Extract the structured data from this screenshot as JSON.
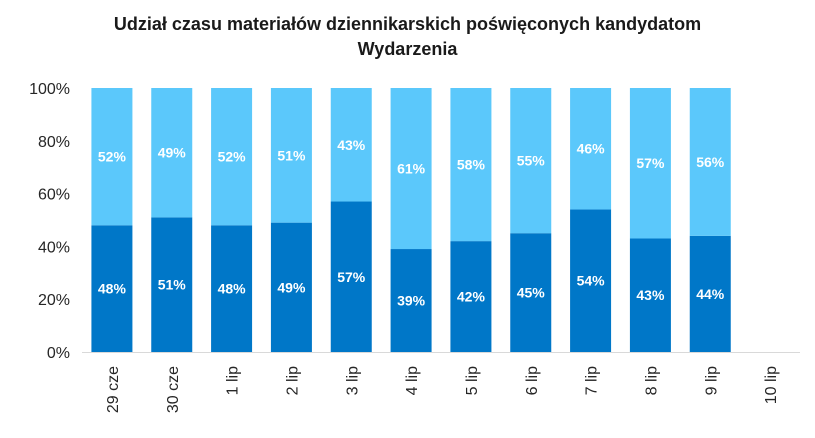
{
  "chart_data": {
    "type": "bar",
    "stacked": true,
    "percent_stacked": true,
    "title": "Udział czasu materiałów dziennikarskich poświęconych kandydatom",
    "subtitle": "Wydarzenia",
    "xlabel": "",
    "ylabel": "",
    "ylim": [
      0,
      100
    ],
    "yticks": [
      "0%",
      "20%",
      "40%",
      "60%",
      "80%",
      "100%"
    ],
    "grid": false,
    "legend": "none",
    "categories": [
      "29 cze",
      "30 cze",
      "1 lip",
      "2 lip",
      "3 lip",
      "4 lip",
      "5 lip",
      "6 lip",
      "7 lip",
      "8 lip",
      "9 lip",
      "10 lip"
    ],
    "series": [
      {
        "name": "series-1",
        "color": "#0077c8",
        "values": [
          48,
          51,
          48,
          49,
          57,
          39,
          42,
          45,
          54,
          43,
          44,
          null
        ],
        "labels": [
          "48%",
          "51%",
          "48%",
          "49%",
          "57%",
          "39%",
          "42%",
          "45%",
          "54%",
          "43%",
          "44%",
          ""
        ]
      },
      {
        "name": "series-2",
        "color": "#5bc8fb",
        "values": [
          52,
          49,
          52,
          51,
          43,
          61,
          58,
          55,
          46,
          57,
          56,
          null
        ],
        "labels": [
          "52%",
          "49%",
          "52%",
          "51%",
          "43%",
          "61%",
          "58%",
          "55%",
          "46%",
          "57%",
          "56%",
          ""
        ]
      }
    ]
  }
}
